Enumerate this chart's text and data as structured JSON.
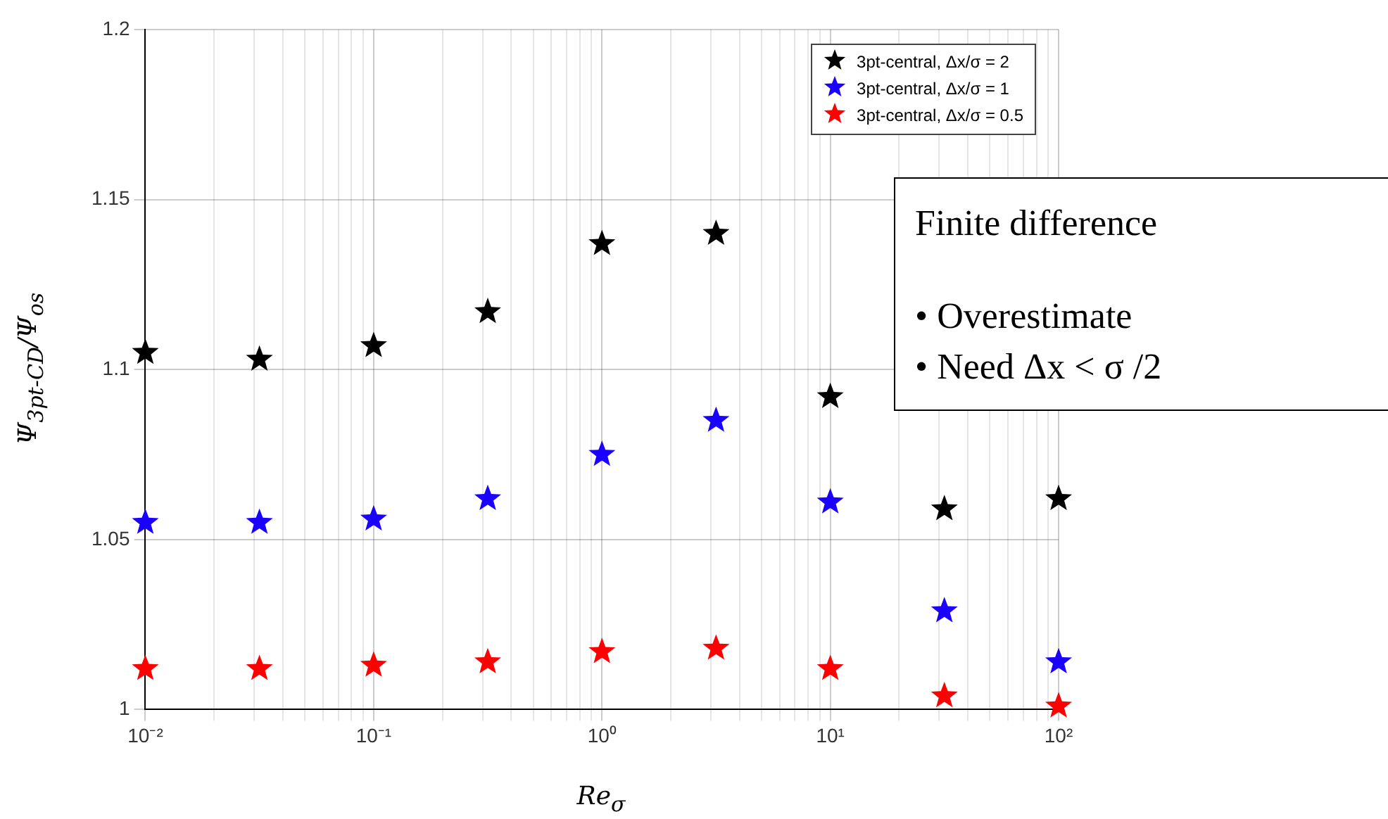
{
  "chart_data": {
    "type": "scatter",
    "xlabel": "Re$_{σ}$",
    "ylabel": "Ψ$_{3pt-CD}$/Ψ$_{os}$",
    "x": [
      0.01,
      0.0316,
      0.1,
      0.316,
      1,
      3.16,
      10,
      31.6,
      100
    ],
    "series": [
      {
        "name": "3pt-central, Δx/σ = 2",
        "color": "#000000",
        "values": [
          1.105,
          1.103,
          1.107,
          1.117,
          1.137,
          1.14,
          1.092,
          1.059,
          1.062
        ]
      },
      {
        "name": "3pt-central, Δx/σ = 1",
        "color": "#1a00ff",
        "values": [
          1.055,
          1.055,
          1.056,
          1.062,
          1.075,
          1.085,
          1.061,
          1.029,
          1.014
        ]
      },
      {
        "name": "3pt-central, Δx/σ = 0.5",
        "color": "#ff0000",
        "values": [
          1.012,
          1.012,
          1.013,
          1.014,
          1.017,
          1.018,
          1.012,
          1.004,
          1.001
        ]
      }
    ],
    "log": "x",
    "xlim": [
      0.01,
      100
    ],
    "xticks": [
      {
        "value": 0.01,
        "label": "10⁻²"
      },
      {
        "value": 0.02,
        "label": null
      },
      {
        "value": 0.03,
        "label": null
      },
      {
        "value": 0.04,
        "label": null
      },
      {
        "value": 0.05,
        "label": null
      },
      {
        "value": 0.06,
        "label": null
      },
      {
        "value": 0.07,
        "label": null
      },
      {
        "value": 0.08,
        "label": null
      },
      {
        "value": 0.09,
        "label": null
      },
      {
        "value": 0.1,
        "label": "10⁻¹"
      },
      {
        "value": 0.2,
        "label": null
      },
      {
        "value": 0.3,
        "label": null
      },
      {
        "value": 0.4,
        "label": null
      },
      {
        "value": 0.5,
        "label": null
      },
      {
        "value": 0.6,
        "label": null
      },
      {
        "value": 0.7,
        "label": null
      },
      {
        "value": 0.8,
        "label": null
      },
      {
        "value": 0.9,
        "label": null
      },
      {
        "value": 1,
        "label": "10⁰"
      },
      {
        "value": 2,
        "label": null
      },
      {
        "value": 3,
        "label": null
      },
      {
        "value": 4,
        "label": null
      },
      {
        "value": 5,
        "label": null
      },
      {
        "value": 6,
        "label": null
      },
      {
        "value": 7,
        "label": null
      },
      {
        "value": 8,
        "label": null
      },
      {
        "value": 9,
        "label": null
      },
      {
        "value": 10,
        "label": "10¹"
      },
      {
        "value": 20,
        "label": null
      },
      {
        "value": 30,
        "label": null
      },
      {
        "value": 40,
        "label": null
      },
      {
        "value": 50,
        "label": null
      },
      {
        "value": 60,
        "label": null
      },
      {
        "value": 70,
        "label": null
      },
      {
        "value": 80,
        "label": null
      },
      {
        "value": 90,
        "label": null
      },
      {
        "value": 100,
        "label": "10²"
      }
    ],
    "ylim": [
      1,
      1.2
    ],
    "yticks": [
      1,
      1.05,
      1.1,
      1.15,
      1.2
    ],
    "grid": true,
    "legend": "top right",
    "marker": "star",
    "annotations": [
      "Finite difference",
      "• Overestimate",
      "• Need Δx < σ /2"
    ]
  }
}
